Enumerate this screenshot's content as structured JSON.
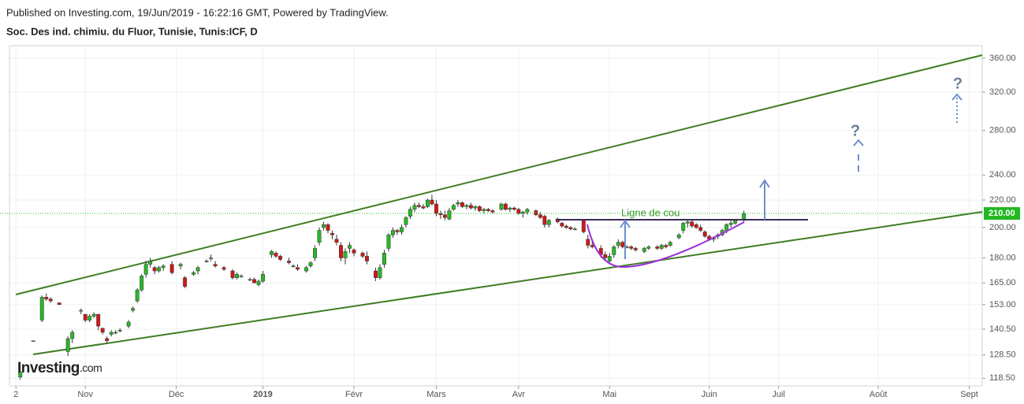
{
  "header": {
    "published": "Published on Investing.com, 19/Jun/2019 - 16:22:16 GMT, Powered by TradingView.",
    "logo_main": "Investing",
    "logo_suffix": ".com"
  },
  "chart_data": {
    "type": "candlestick",
    "title": "Soc. Des ind. chimiu. du Fluor, Tunisie, Tunis:ICF, D",
    "up_color": "#28b828",
    "down_color": "#d01818",
    "yscale": "log",
    "grid": true,
    "ylim": [
      115.4,
      376
    ],
    "xlim": [
      -2.5,
      222
    ],
    "yticks": [
      {
        "value": 118.5,
        "label": "118.50"
      },
      {
        "value": 128.5,
        "label": "128.50"
      },
      {
        "value": 140.5,
        "label": "140.50"
      },
      {
        "value": 153,
        "label": "153.00"
      },
      {
        "value": 165,
        "label": "165.00"
      },
      {
        "value": 180,
        "label": "180.00"
      },
      {
        "value": 200,
        "label": "200.00"
      },
      {
        "value": 220,
        "label": "220.00"
      },
      {
        "value": 240,
        "label": "240.00"
      },
      {
        "value": 280,
        "label": "280.00"
      },
      {
        "value": 320,
        "label": "320.00"
      },
      {
        "value": 360,
        "label": "360.00"
      }
    ],
    "xticks": [
      {
        "value": -1,
        "label": "2"
      },
      {
        "value": 15,
        "label": "Nov"
      },
      {
        "value": 36,
        "label": "Déc"
      },
      {
        "value": 56,
        "label": "2019"
      },
      {
        "value": 77,
        "label": "Févr"
      },
      {
        "value": 96,
        "label": "Mars"
      },
      {
        "value": 115,
        "label": "Avr"
      },
      {
        "value": 136,
        "label": "Mai"
      },
      {
        "value": 159,
        "label": "Juin"
      },
      {
        "value": 175,
        "label": "Juil"
      },
      {
        "value": 198,
        "label": "Août"
      },
      {
        "value": 219,
        "label": "Sept"
      }
    ],
    "current_price": {
      "value": 210,
      "label": "210.00"
    },
    "annotations": {
      "neckline": "Ligne de cou",
      "question_1": "?",
      "question_2": "?"
    },
    "x": [
      0,
      3,
      5,
      6,
      7,
      9,
      11,
      12,
      14,
      15,
      16,
      17,
      18,
      19,
      20,
      21,
      22,
      23,
      25,
      26,
      27,
      28,
      29,
      30,
      31,
      32,
      33,
      35,
      37,
      38,
      40,
      41,
      43,
      44,
      45,
      47,
      49,
      50,
      51,
      53,
      54,
      55,
      56,
      58,
      59,
      60,
      62,
      63,
      64,
      66,
      67,
      68,
      69,
      70,
      71,
      72,
      73,
      74,
      75,
      76,
      77,
      79,
      80,
      82,
      83,
      84,
      85,
      86,
      87,
      88,
      89,
      90,
      91,
      92,
      93,
      94,
      95,
      96,
      97,
      98,
      99,
      100,
      101,
      102,
      103,
      104,
      105,
      106,
      107,
      108,
      109,
      111,
      112,
      113,
      114,
      115,
      116,
      117,
      119,
      120,
      121,
      122,
      124,
      125,
      126,
      127,
      128,
      130,
      131,
      132,
      134,
      135,
      136,
      137,
      138,
      139,
      140,
      141,
      142,
      144,
      145,
      147,
      148,
      149,
      150,
      152,
      153,
      154,
      155,
      156,
      157,
      158,
      159,
      160,
      161,
      162,
      163,
      164,
      165,
      167
    ],
    "open": [
      119,
      135,
      145,
      157,
      156,
      154,
      130,
      136,
      150,
      148,
      145,
      147,
      148,
      141,
      136,
      138,
      139,
      140,
      142,
      150,
      155,
      161,
      170,
      176,
      174,
      172,
      174,
      176,
      175,
      168,
      170,
      172,
      178,
      180,
      176,
      174,
      172,
      168,
      169,
      167,
      167,
      164,
      166,
      182,
      183,
      181,
      178,
      175,
      174,
      172,
      175,
      180,
      190,
      200,
      202,
      196,
      192,
      188,
      180,
      186,
      185,
      183,
      181,
      172,
      168,
      176,
      186,
      195,
      198,
      197,
      202,
      208,
      213,
      216,
      215,
      215,
      220,
      217,
      210,
      209,
      206,
      213,
      217,
      218,
      215,
      216,
      214,
      215,
      212,
      213,
      212,
      213,
      217,
      213,
      214,
      213,
      210,
      211,
      212,
      209,
      208,
      202,
      206,
      203,
      201,
      200,
      199,
      205,
      192,
      188,
      186,
      182,
      178,
      182,
      188,
      190,
      187,
      187,
      186,
      184,
      186,
      187,
      186,
      188,
      188,
      193,
      198,
      203,
      204,
      202,
      200,
      197,
      194,
      192,
      194,
      195,
      198,
      202,
      203,
      205
    ],
    "high": [
      122,
      135,
      158,
      159,
      157,
      154,
      137,
      140,
      151,
      148,
      148,
      149,
      148,
      141,
      137,
      140,
      140,
      141,
      145,
      152,
      162,
      170,
      178,
      180,
      175,
      175,
      176,
      178,
      177,
      169,
      172,
      175,
      179,
      182,
      178,
      175,
      173,
      171,
      170,
      168,
      168,
      167,
      172,
      185,
      184,
      182,
      180,
      176,
      176,
      175,
      178,
      188,
      200,
      204,
      203,
      198,
      195,
      190,
      186,
      190,
      186,
      184,
      184,
      174,
      176,
      185,
      196,
      200,
      199,
      202,
      208,
      215,
      218,
      218,
      217,
      221,
      224,
      220,
      212,
      212,
      214,
      217,
      220,
      219,
      217,
      218,
      216,
      216,
      214,
      214,
      213,
      218,
      218,
      215,
      215,
      214,
      212,
      214,
      213,
      211,
      209,
      206,
      207,
      204,
      202,
      201,
      200,
      205,
      195,
      192,
      188,
      184,
      183,
      188,
      192,
      191,
      188,
      188,
      187,
      187,
      188,
      188,
      189,
      189,
      191,
      196,
      204,
      206,
      205,
      203,
      202,
      198,
      195,
      194,
      196,
      199,
      203,
      205,
      206,
      212
    ],
    "low": [
      118,
      135,
      144,
      155,
      154,
      153,
      128,
      134,
      148,
      144,
      144,
      146,
      140,
      138,
      134,
      137,
      138,
      139,
      141,
      149,
      154,
      160,
      168,
      174,
      170,
      171,
      172,
      170,
      173,
      162,
      169,
      170,
      177,
      178,
      174,
      172,
      167,
      167,
      168,
      166,
      165,
      163,
      165,
      180,
      180,
      178,
      176,
      174,
      172,
      171,
      174,
      178,
      188,
      198,
      196,
      192,
      188,
      178,
      176,
      183,
      181,
      180,
      176,
      166,
      167,
      174,
      184,
      193,
      195,
      195,
      200,
      206,
      211,
      214,
      213,
      214,
      216,
      208,
      206,
      205,
      205,
      212,
      215,
      214,
      213,
      213,
      212,
      211,
      210,
      211,
      210,
      212,
      212,
      211,
      212,
      209,
      207,
      209,
      208,
      206,
      200,
      200,
      203,
      200,
      199,
      198,
      198,
      196,
      186,
      186,
      180,
      178,
      176,
      180,
      186,
      186,
      186,
      185,
      184,
      183,
      185,
      185,
      185,
      186,
      187,
      192,
      196,
      200,
      200,
      199,
      197,
      193,
      191,
      190,
      192,
      194,
      196,
      200,
      202,
      204
    ],
    "close": [
      121,
      135,
      157,
      156,
      155,
      153,
      136,
      139,
      150,
      145,
      147,
      148,
      142,
      139,
      135,
      139,
      139,
      140,
      144,
      151,
      161,
      169,
      176,
      178,
      172,
      174,
      175,
      171,
      176,
      163,
      171,
      174,
      178,
      180,
      175,
      173,
      168,
      170,
      169,
      167,
      165,
      166,
      170,
      184,
      181,
      179,
      177,
      175,
      173,
      174,
      177,
      186,
      198,
      202,
      198,
      195,
      190,
      180,
      184,
      188,
      183,
      181,
      178,
      168,
      174,
      183,
      195,
      198,
      197,
      200,
      207,
      213,
      216,
      215,
      214,
      220,
      217,
      210,
      209,
      207,
      212,
      216,
      218,
      215,
      216,
      214,
      215,
      212,
      213,
      212,
      211,
      217,
      213,
      214,
      213,
      210,
      211,
      213,
      209,
      207,
      202,
      205,
      204,
      201,
      200,
      199,
      199,
      197,
      188,
      187,
      182,
      180,
      181,
      187,
      190,
      187,
      187,
      186,
      185,
      186,
      187,
      186,
      188,
      187,
      190,
      195,
      203,
      204,
      201,
      200,
      198,
      194,
      192,
      193,
      195,
      198,
      202,
      203,
      205,
      210
    ]
  }
}
